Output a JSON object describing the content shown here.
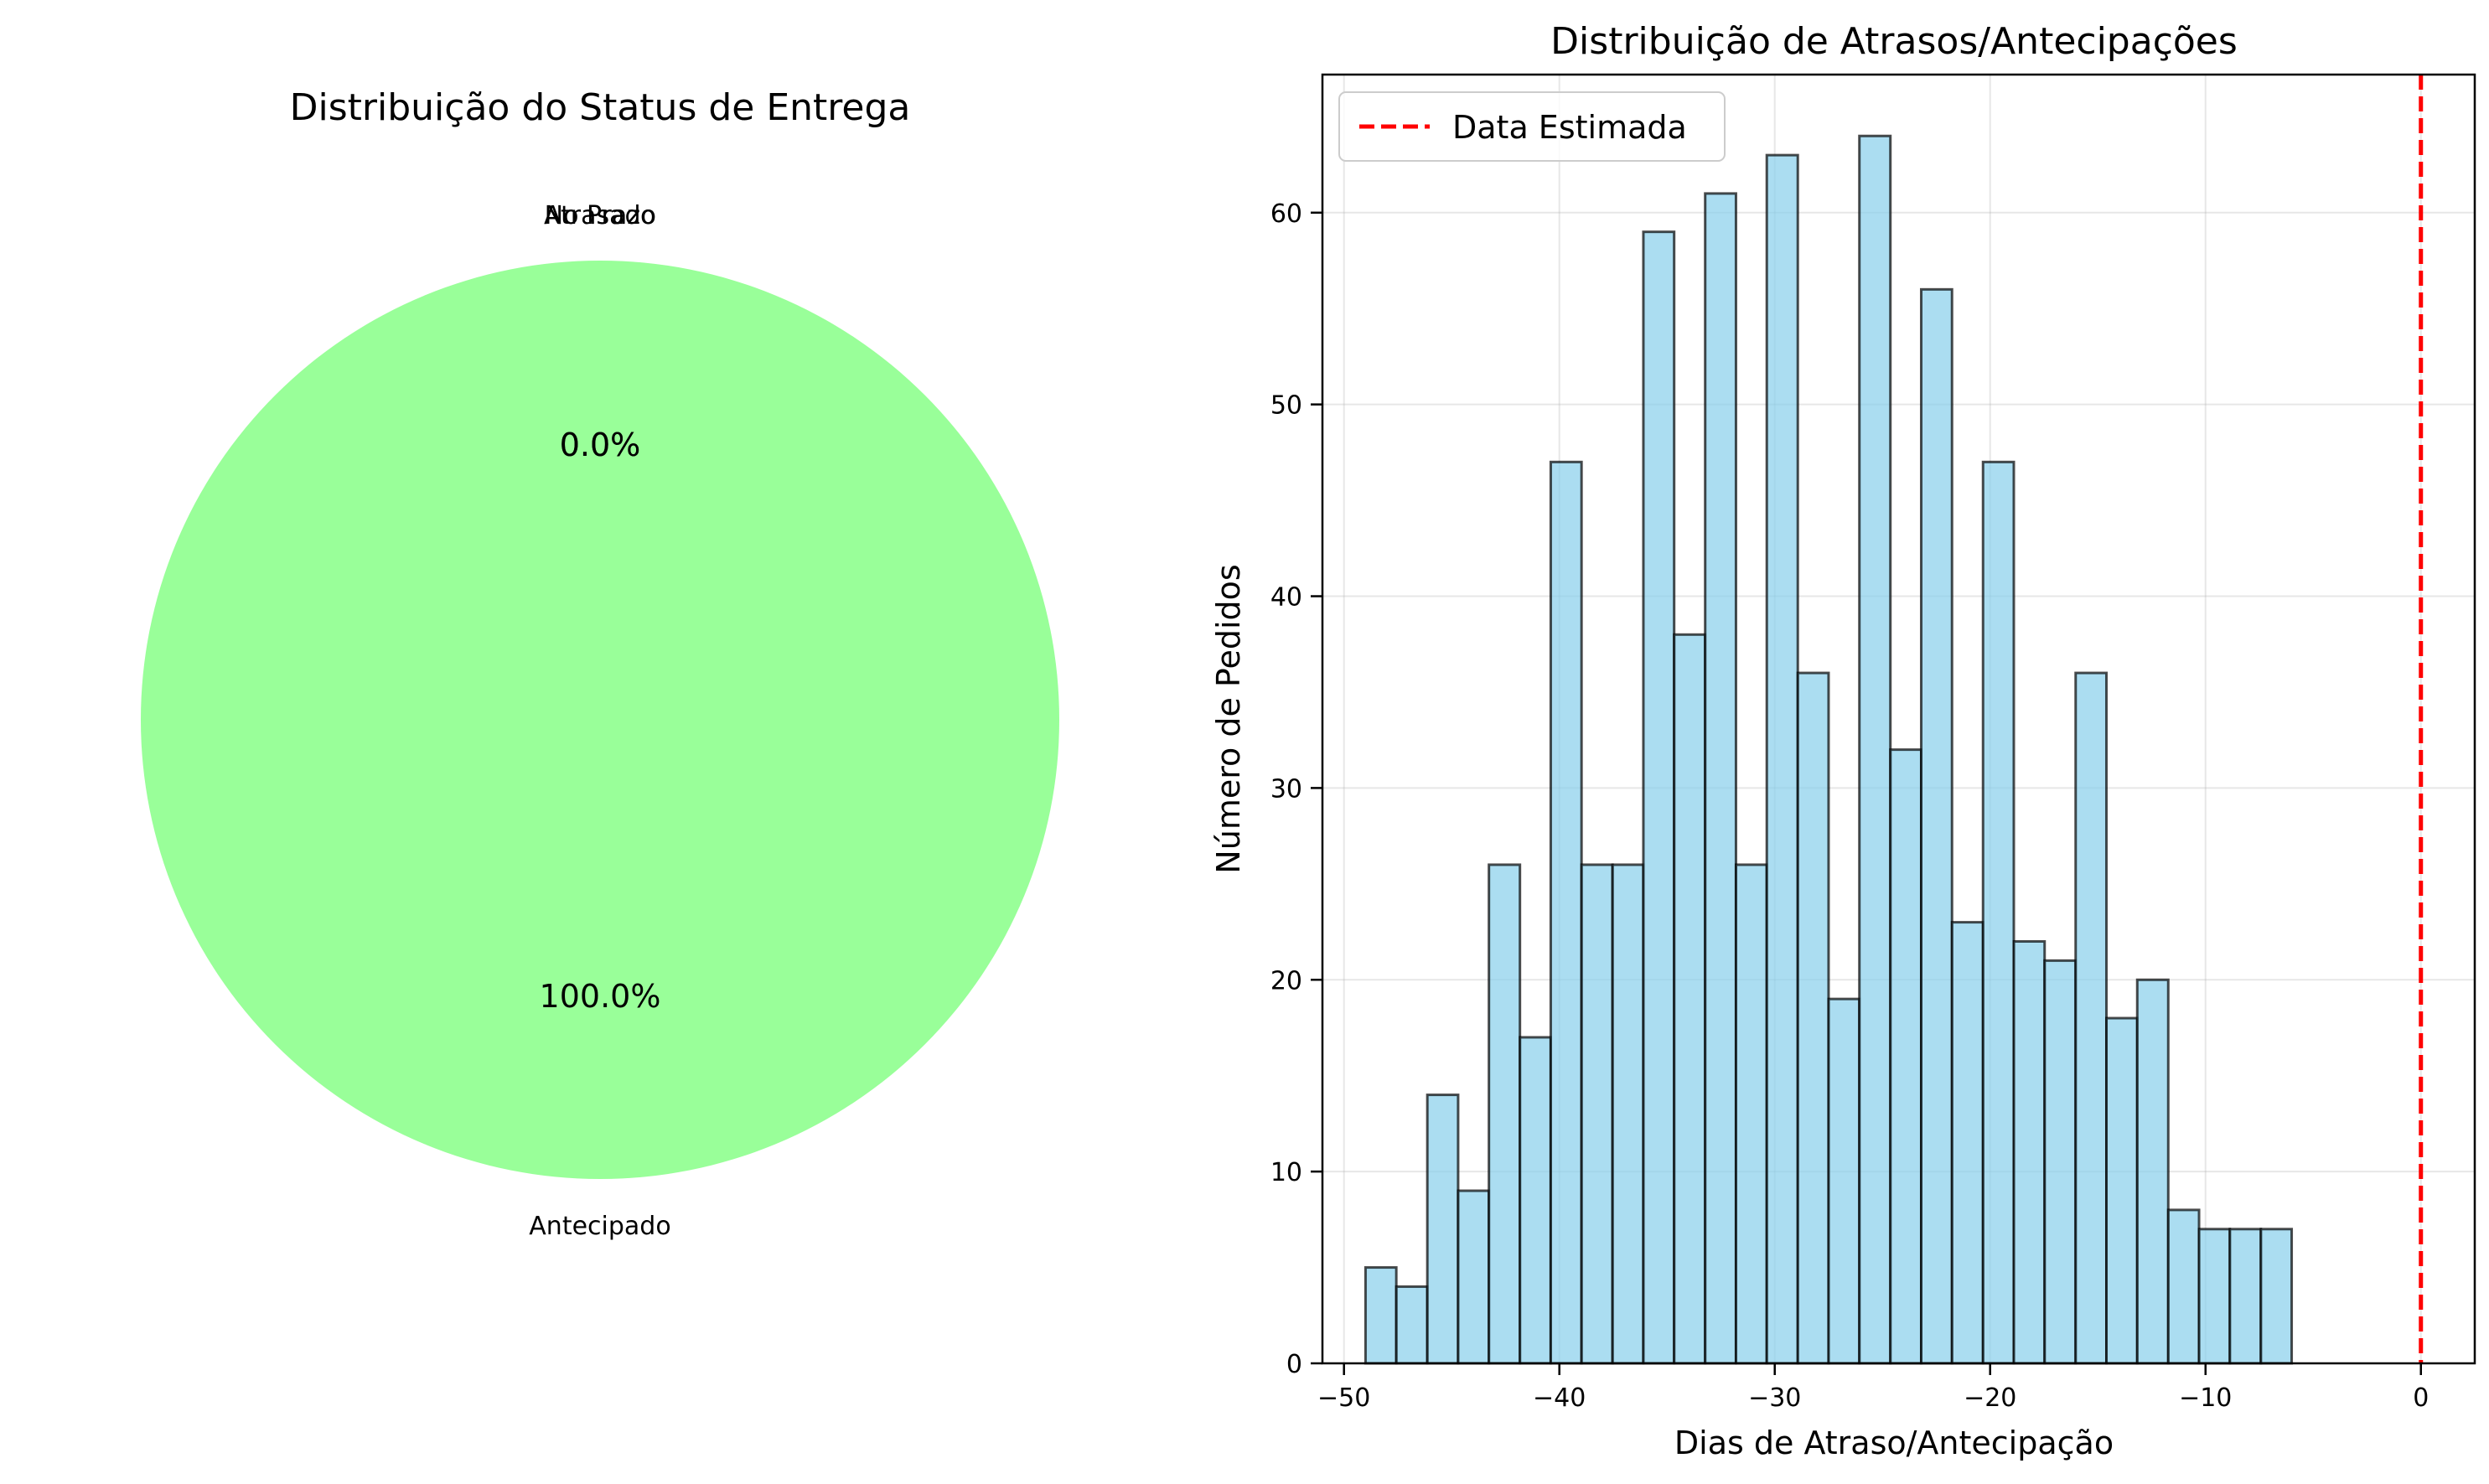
{
  "chart_data": [
    {
      "type": "pie",
      "title": "Distribuição do Status de Entrega",
      "labels": [
        "No Prazo",
        "Atrasado",
        "Antecipado"
      ],
      "values": [
        0.0,
        0.0,
        100.0
      ],
      "pct_labels": [
        "0.0%",
        "0.0%",
        "100.0%"
      ],
      "colors": [
        "#66b3ff",
        "#ff9999",
        "#99ff99"
      ]
    },
    {
      "type": "bar",
      "title": "Distribuição de Atrasos/Antecipações",
      "xlabel": "Dias de Atraso/Antecipação",
      "ylabel": "Número de Pedidos",
      "xlim": [
        -51,
        2.5
      ],
      "ylim": [
        0,
        67.2
      ],
      "xticks": [
        -50,
        -40,
        -30,
        -20,
        -10,
        0
      ],
      "xtick_labels": [
        "−50",
        "−40",
        "−30",
        "−20",
        "−10",
        "0"
      ],
      "yticks": [
        0,
        10,
        20,
        30,
        40,
        50,
        60
      ],
      "ytick_labels": [
        "0",
        "10",
        "20",
        "30",
        "40",
        "50",
        "60"
      ],
      "grid": true,
      "bin_edges": [
        -49,
        -47.57,
        -46.13,
        -44.7,
        -43.27,
        -41.83,
        -40.4,
        -38.97,
        -37.53,
        -36.1,
        -34.67,
        -33.23,
        -31.8,
        -30.37,
        -28.93,
        -27.5,
        -26.07,
        -24.63,
        -23.2,
        -21.77,
        -20.33,
        -18.9,
        -17.47,
        -16.03,
        -14.6,
        -13.17,
        -11.73,
        -10.3,
        -8.87,
        -7.43,
        -6.0
      ],
      "values": [
        5,
        4,
        14,
        9,
        26,
        17,
        47,
        26,
        26,
        59,
        38,
        61,
        26,
        63,
        36,
        19,
        64,
        32,
        56,
        23,
        47,
        22,
        21,
        36,
        18,
        20,
        8,
        7,
        7,
        7
      ],
      "bar_color": "#87ceeb",
      "edge_color": "#000000",
      "vline": {
        "x": 0,
        "color": "#ff0000",
        "style": "dashed"
      },
      "legend": {
        "position": "top-left",
        "entries": [
          "Data Estimada"
        ]
      }
    }
  ]
}
